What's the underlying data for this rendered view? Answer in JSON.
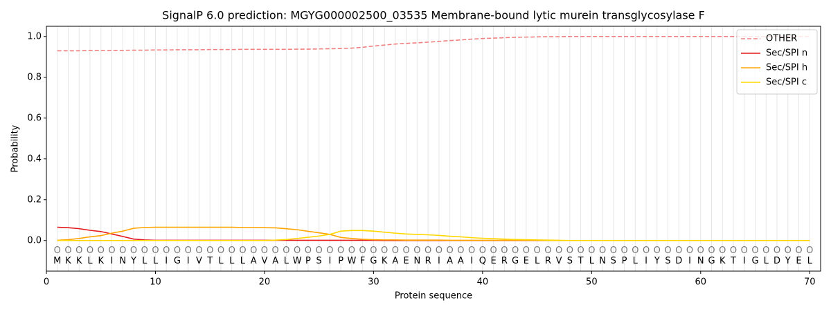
{
  "chart_data": {
    "type": "line",
    "title": "SignalP 6.0 prediction: MGYG000002500_03535 Membrane-bound lytic murein transglycosylase F",
    "x_label": "Protein sequence",
    "y_label": "Probability",
    "x": [
      1,
      2,
      3,
      4,
      5,
      6,
      7,
      8,
      9,
      10,
      11,
      12,
      13,
      14,
      15,
      16,
      17,
      18,
      19,
      20,
      21,
      22,
      23,
      24,
      25,
      26,
      27,
      28,
      29,
      30,
      31,
      32,
      33,
      34,
      35,
      36,
      37,
      38,
      39,
      40,
      41,
      42,
      43,
      44,
      45,
      46,
      47,
      48,
      49,
      50,
      51,
      52,
      53,
      54,
      55,
      56,
      57,
      58,
      59,
      60,
      61,
      62,
      63,
      64,
      65,
      66,
      67,
      68,
      69,
      70
    ],
    "sequence": [
      "M",
      "K",
      "K",
      "L",
      "K",
      "I",
      "N",
      "Y",
      "L",
      "L",
      "I",
      "G",
      "I",
      "V",
      "T",
      "L",
      "L",
      "L",
      "A",
      "V",
      "A",
      "L",
      "W",
      "P",
      "S",
      "I",
      "P",
      "W",
      "F",
      "G",
      "K",
      "A",
      "E",
      "N",
      "R",
      "I",
      "A",
      "A",
      "I",
      "Q",
      "E",
      "R",
      "G",
      "E",
      "L",
      "R",
      "V",
      "S",
      "T",
      "L",
      "N",
      "S",
      "P",
      "L",
      "I",
      "Y",
      "S",
      "D",
      "I",
      "N",
      "G",
      "K",
      "T",
      "I",
      "G",
      "L",
      "D",
      "Y",
      "E",
      "L"
    ],
    "region_labels": [
      "O",
      "O",
      "O",
      "O",
      "O",
      "O",
      "O",
      "O",
      "O",
      "O",
      "O",
      "O",
      "O",
      "O",
      "O",
      "O",
      "O",
      "O",
      "O",
      "O",
      "O",
      "O",
      "O",
      "O",
      "O",
      "O",
      "O",
      "O",
      "O",
      "O",
      "O",
      "O",
      "O",
      "O",
      "O",
      "O",
      "O",
      "O",
      "O",
      "O",
      "O",
      "O",
      "O",
      "O",
      "O",
      "O",
      "O",
      "O",
      "O",
      "O",
      "O",
      "O",
      "O",
      "O",
      "O",
      "O",
      "O",
      "O",
      "O",
      "O",
      "O",
      "O",
      "O",
      "O",
      "O",
      "O",
      "O",
      "O",
      "O",
      "O"
    ],
    "series": [
      {
        "name": "OTHER",
        "color": "#f08080",
        "linestyle": "dashed",
        "values": [
          0.93,
          0.93,
          0.93,
          0.931,
          0.931,
          0.932,
          0.932,
          0.933,
          0.933,
          0.934,
          0.934,
          0.935,
          0.935,
          0.935,
          0.936,
          0.936,
          0.936,
          0.937,
          0.937,
          0.937,
          0.937,
          0.937,
          0.938,
          0.938,
          0.939,
          0.94,
          0.941,
          0.943,
          0.947,
          0.953,
          0.958,
          0.963,
          0.966,
          0.969,
          0.972,
          0.976,
          0.98,
          0.983,
          0.987,
          0.99,
          0.992,
          0.994,
          0.996,
          0.997,
          0.998,
          0.999,
          0.999,
          1.0,
          1.0,
          1.0,
          1.0,
          1.0,
          1.0,
          1.0,
          1.0,
          1.0,
          1.0,
          1.0,
          1.0,
          1.0,
          1.0,
          1.0,
          1.0,
          1.0,
          1.0,
          1.0,
          1.0,
          1.0,
          1.0,
          1.0
        ]
      },
      {
        "name": "Sec/SPI n",
        "color": "#e41a1c",
        "linestyle": "solid",
        "values": [
          0.065,
          0.063,
          0.058,
          0.05,
          0.044,
          0.032,
          0.02,
          0.007,
          0.003,
          0.001,
          0.001,
          0.001,
          0.001,
          0.001,
          0.001,
          0.001,
          0.001,
          0.001,
          0.001,
          0.001,
          0.001,
          0.001,
          0.001,
          0.001,
          0.001,
          0.001,
          0.001,
          0.001,
          0.001,
          0.001,
          0,
          0,
          0,
          0,
          0,
          0,
          0,
          0,
          0,
          0,
          0,
          0,
          0,
          0,
          0,
          0,
          0,
          0,
          0,
          0,
          0,
          0,
          0,
          0,
          0,
          0,
          0,
          0,
          0,
          0,
          0,
          0,
          0,
          0,
          0,
          0,
          0,
          0,
          0,
          0
        ]
      },
      {
        "name": "Sec/SPI h",
        "color": "#ffa500",
        "linestyle": "solid",
        "values": [
          0.001,
          0.004,
          0.01,
          0.018,
          0.024,
          0.036,
          0.046,
          0.06,
          0.064,
          0.065,
          0.065,
          0.065,
          0.065,
          0.065,
          0.065,
          0.065,
          0.065,
          0.064,
          0.064,
          0.063,
          0.062,
          0.058,
          0.053,
          0.045,
          0.038,
          0.03,
          0.015,
          0.01,
          0.006,
          0.004,
          0.003,
          0.003,
          0.002,
          0.002,
          0.002,
          0.002,
          0.001,
          0.001,
          0.001,
          0.001,
          0.001,
          0.001,
          0.001,
          0.001,
          0.001,
          0,
          0,
          0,
          0,
          0,
          0,
          0,
          0,
          0,
          0,
          0,
          0,
          0,
          0,
          0,
          0,
          0,
          0,
          0,
          0,
          0,
          0,
          0,
          0,
          0
        ]
      },
      {
        "name": "Sec/SPI c",
        "color": "#ffd700",
        "linestyle": "solid",
        "values": [
          0,
          0,
          0,
          0,
          0,
          0,
          0,
          0,
          0,
          0,
          0,
          0,
          0,
          0,
          0,
          0,
          0,
          0,
          0,
          0,
          0.002,
          0.005,
          0.01,
          0.016,
          0.022,
          0.03,
          0.046,
          0.049,
          0.049,
          0.046,
          0.041,
          0.036,
          0.032,
          0.03,
          0.028,
          0.025,
          0.021,
          0.018,
          0.014,
          0.011,
          0.009,
          0.007,
          0.005,
          0.004,
          0.003,
          0.002,
          0.001,
          0,
          0,
          0,
          0,
          0,
          0,
          0,
          0,
          0,
          0,
          0,
          0,
          0,
          0,
          0,
          0,
          0,
          0,
          0,
          0,
          0,
          0,
          0
        ]
      }
    ],
    "xlim": [
      0,
      71
    ],
    "ylim": [
      -0.15,
      1.05
    ],
    "xticks": [
      0,
      10,
      20,
      30,
      40,
      50,
      60,
      70
    ],
    "yticks": [
      {
        "value": 0,
        "label": "0.0"
      },
      {
        "value": 0.2,
        "label": "0.2"
      },
      {
        "value": 0.4,
        "label": "0.4"
      },
      {
        "value": 0.6,
        "label": "0.6"
      },
      {
        "value": 0.8,
        "label": "0.8"
      },
      {
        "value": 1,
        "label": "1.0"
      }
    ],
    "region_label_y": -0.05,
    "sequence_y": -0.1,
    "grid": true,
    "legend": "upper right"
  }
}
